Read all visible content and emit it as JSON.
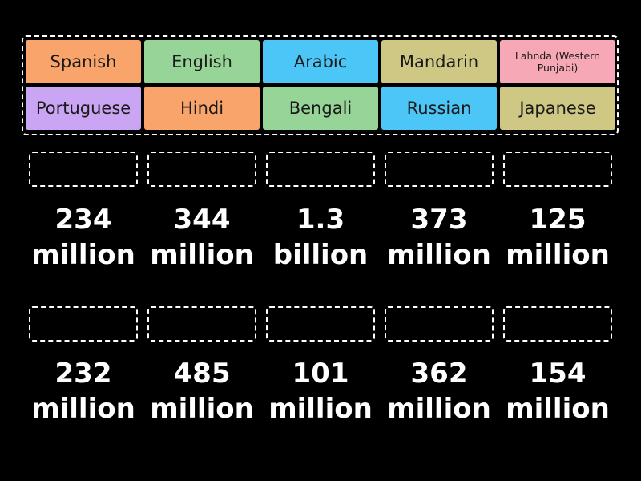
{
  "tiles": [
    {
      "label": "Spanish",
      "color": "#f9a46b"
    },
    {
      "label": "English",
      "color": "#97d497"
    },
    {
      "label": "Arabic",
      "color": "#4cc6f7"
    },
    {
      "label": "Mandarin",
      "color": "#cfc884"
    },
    {
      "label": "Lahnda (Western Punjabi)",
      "color": "#f7a8b6"
    },
    {
      "label": "Portuguese",
      "color": "#caa5f4"
    },
    {
      "label": "Hindi",
      "color": "#f9a46b"
    },
    {
      "label": "Bengali",
      "color": "#97d497"
    },
    {
      "label": "Russian",
      "color": "#4cc6f7"
    },
    {
      "label": "Japanese",
      "color": "#cfc884"
    }
  ],
  "targets_row1": [
    {
      "number": "234",
      "unit": "million"
    },
    {
      "number": "344",
      "unit": "million"
    },
    {
      "number": "1.3",
      "unit": "billion"
    },
    {
      "number": "373",
      "unit": "million"
    },
    {
      "number": "125",
      "unit": "million"
    }
  ],
  "targets_row2": [
    {
      "number": "232",
      "unit": "million"
    },
    {
      "number": "485",
      "unit": "million"
    },
    {
      "number": "101",
      "unit": "million"
    },
    {
      "number": "362",
      "unit": "million"
    },
    {
      "number": "154",
      "unit": "million"
    }
  ]
}
